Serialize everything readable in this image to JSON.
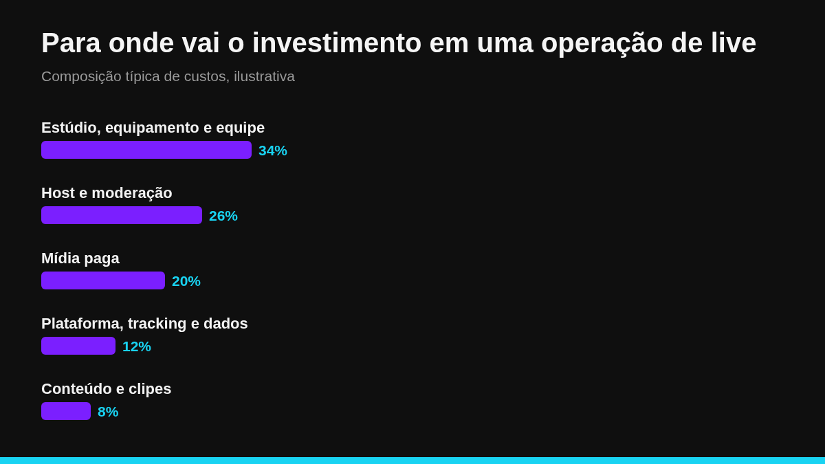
{
  "chart_data": {
    "type": "bar",
    "orientation": "horizontal",
    "title": "Para onde vai o investimento em uma operação de live",
    "subtitle": "Composição típica de custos, ilustrativa",
    "categories": [
      "Estúdio, equipamento e equipe",
      "Host e moderação",
      "Mídia paga",
      "Plataforma, tracking e dados",
      "Conteúdo e clipes"
    ],
    "values": [
      34,
      26,
      20,
      12,
      8
    ],
    "value_labels": [
      "34%",
      "26%",
      "20%",
      "12%",
      "8%"
    ],
    "color": "#7b1fff"
  }
}
